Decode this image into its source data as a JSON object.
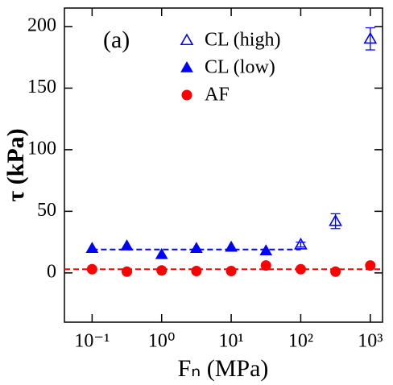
{
  "chart_data": {
    "type": "scatter",
    "annotation": "(a)",
    "x_label": "Fₙ (MPa)",
    "y_label": "τ (kPa)",
    "x_scale": "log",
    "xlim": [
      0.04,
      1500
    ],
    "ylim": [
      -40,
      215
    ],
    "xticks": [
      {
        "value": 0.1,
        "label": "10⁻¹"
      },
      {
        "value": 1,
        "label": "10⁰"
      },
      {
        "value": 10,
        "label": "10¹"
      },
      {
        "value": 100,
        "label": "10²"
      },
      {
        "value": 1000,
        "label": "10³"
      }
    ],
    "yticks": [
      0,
      50,
      100,
      150,
      200
    ],
    "legend": "upper center",
    "series": [
      {
        "name": "CL (high)",
        "color": "#0000ff",
        "marker": "triangle-open",
        "x": [
          100,
          316,
          1000
        ],
        "values": [
          23,
          42,
          190
        ],
        "errors": [
          2,
          6,
          9
        ]
      },
      {
        "name": "CL (low)",
        "color": "#0000ff",
        "marker": "triangle",
        "x": [
          0.1,
          0.316,
          1,
          3.16,
          10,
          31.6
        ],
        "values": [
          20,
          22,
          15,
          20,
          21,
          18
        ]
      },
      {
        "name": "AF",
        "color": "#ff0000",
        "marker": "circle",
        "x": [
          0.1,
          0.316,
          1,
          3.16,
          10,
          31.6,
          100,
          316,
          1000
        ],
        "values": [
          3,
          1,
          2,
          1.5,
          1.5,
          6,
          3,
          1,
          6
        ]
      }
    ],
    "reference_lines": [
      {
        "y": 19,
        "color": "#0000ff",
        "x": [
          0.1,
          100
        ]
      },
      {
        "y": 3,
        "color": "#ff0000"
      }
    ]
  }
}
